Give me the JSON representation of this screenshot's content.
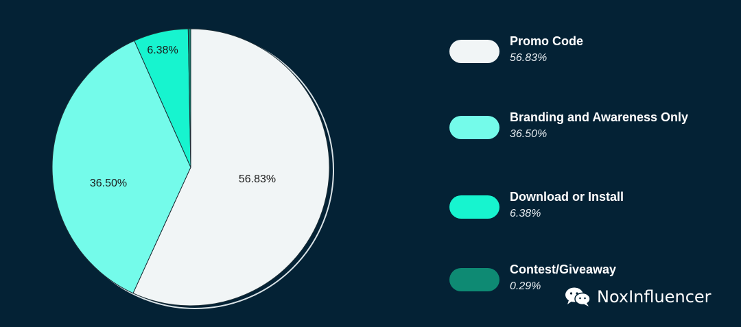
{
  "chart_data": {
    "type": "pie",
    "slices": [
      {
        "label": "Promo Code",
        "value": 56.83,
        "display": "56.83%",
        "color": "#f1f5f6"
      },
      {
        "label": "Branding and Awareness Only",
        "value": 36.5,
        "display": "36.50%",
        "color": "#74fbea"
      },
      {
        "label": "Download or Install",
        "value": 6.38,
        "display": "6.38%",
        "color": "#17f4cf"
      },
      {
        "label": "Contest/Giveaway",
        "value": 0.29,
        "display": "0.29%",
        "color": "#0e8a73"
      }
    ]
  },
  "legend": {
    "items": [
      {
        "name": "Promo Code",
        "pct": "56.83%",
        "color": "#f1f5f6"
      },
      {
        "name": "Branding and Awareness Only",
        "pct": "36.50%",
        "color": "#74fbea"
      },
      {
        "name": "Download or Install",
        "pct": "6.38%",
        "color": "#17f4cf"
      },
      {
        "name": "Contest/Giveaway",
        "pct": "0.29%",
        "color": "#0e8a73"
      }
    ]
  },
  "watermark": {
    "text": "NoxInfluencer",
    "icon": "wechat-icon"
  },
  "colors": {
    "background": "#042235"
  }
}
